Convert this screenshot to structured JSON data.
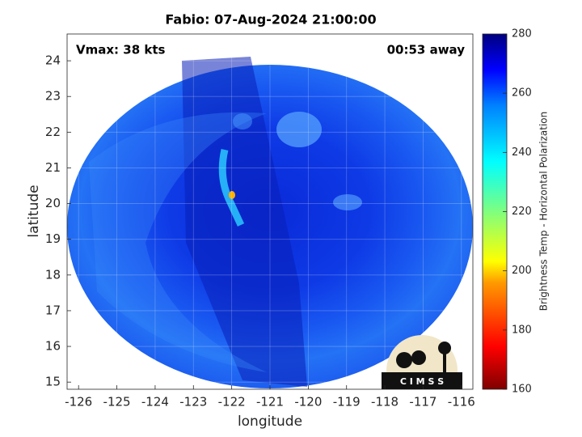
{
  "chart_data": {
    "type": "image",
    "title": "Fabio: 07-Aug-2024 21:00:00",
    "annotations": [
      "Vmax: 38 kts",
      "00:53 away"
    ],
    "x_label": "longitude",
    "y_label": "latitude",
    "xlim": [
      -126.3,
      -115.7
    ],
    "xticks": [
      -126,
      -125,
      -124,
      -123,
      -122,
      -121,
      -120,
      -119,
      -118,
      -117,
      -116
    ],
    "ylim": [
      14.8,
      24.75
    ],
    "yticks": [
      15,
      16,
      17,
      18,
      19,
      20,
      21,
      22,
      23,
      24
    ],
    "grid": true,
    "colorbar": {
      "label": "Brightness Temp - Horizontal Polarization",
      "lim": [
        160,
        280
      ],
      "ticks": [
        160,
        180,
        200,
        220,
        240,
        260,
        280
      ]
    },
    "logo": "C I M S S"
  }
}
